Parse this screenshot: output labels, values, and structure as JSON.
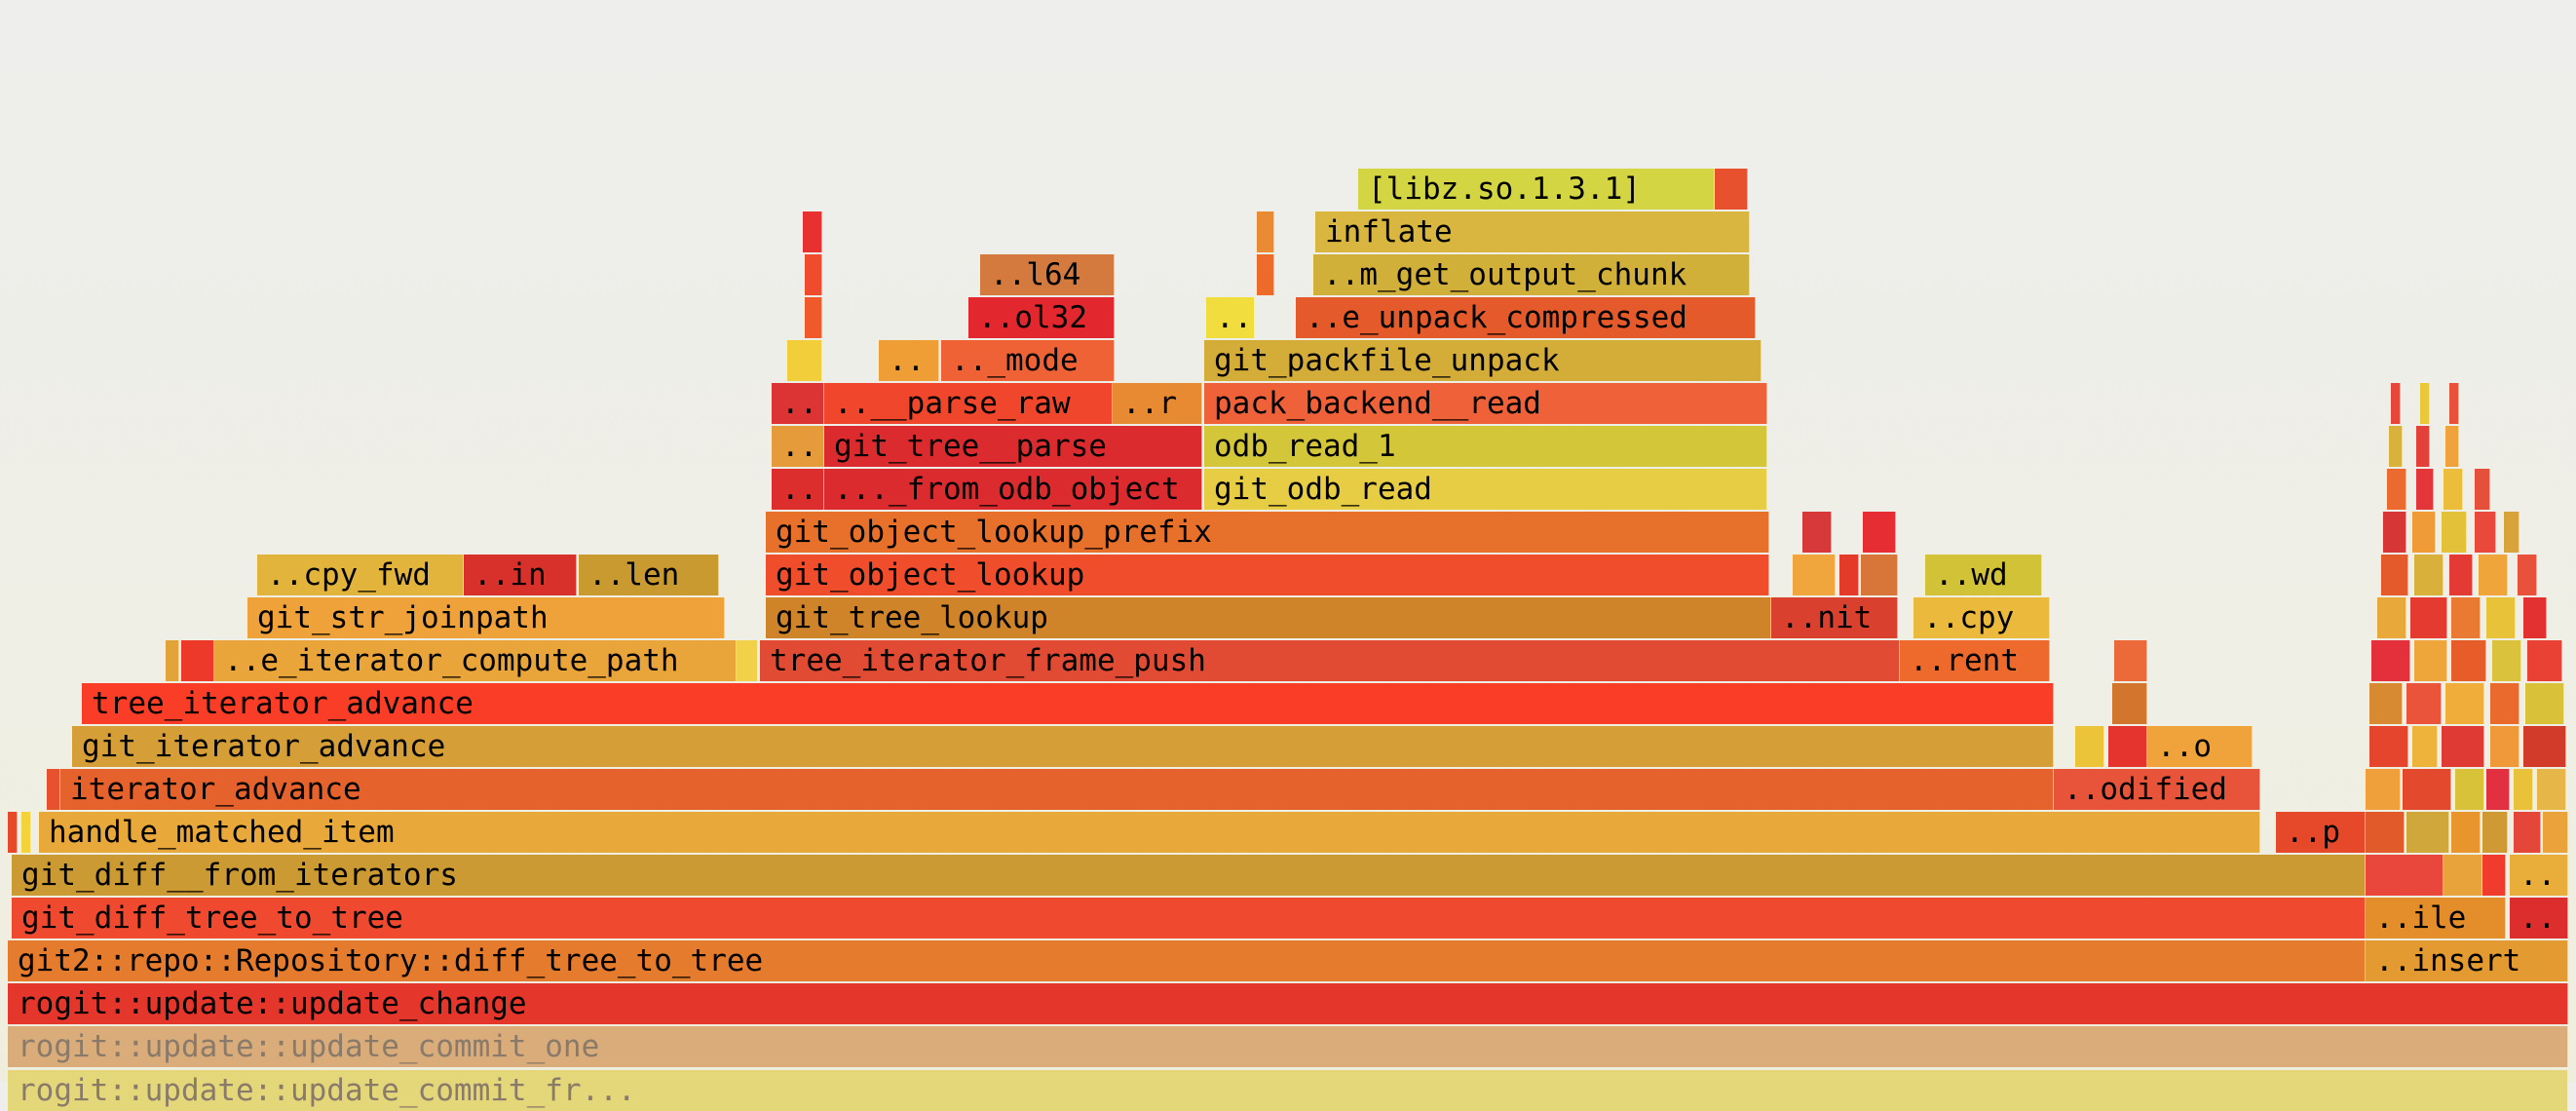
{
  "view": "flame-graph",
  "frames": [
    {
      "label": "rogit::update::update_commit_fr...",
      "color": "#e3d77a",
      "dimmed": true
    },
    {
      "label": "rogit::update::update_commit_one",
      "color": "#d9ac7a",
      "dimmed": true
    },
    {
      "label": "rogit::update::update_change",
      "color": "#e5362b"
    },
    {
      "label": "git2::repo::Repository::diff_tree_to_tree",
      "color": "#e57b2d"
    },
    {
      "label": "..insert",
      "color": "#e39a30"
    },
    {
      "label": "git_diff_tree_to_tree",
      "color": "#ef4a2f"
    },
    {
      "label": "..ile",
      "color": "#e38e2a"
    },
    {
      "label": "..",
      "color": "#dd2e2e"
    },
    {
      "label": "git_diff__from_iterators",
      "color": "#cc9a33"
    },
    {
      "label": "..",
      "color": "#e9ad3a"
    },
    {
      "label": "handle_matched_item",
      "color": "#e9a93a"
    },
    {
      "label": "..p",
      "color": "#e5492a"
    },
    {
      "label": "iterator_advance",
      "color": "#e5622c"
    },
    {
      "label": "..odified",
      "color": "#e7543a"
    },
    {
      "label": "git_iterator_advance",
      "color": "#d69e36"
    },
    {
      "label": "..o",
      "color": "#f0a33a"
    },
    {
      "label": "tree_iterator_advance",
      "color": "#f93d27"
    },
    {
      "label": "..e_iterator_compute_path",
      "color": "#eaa53a"
    },
    {
      "label": "tree_iterator_frame_push",
      "color": "#e24b33"
    },
    {
      "label": "..rent",
      "color": "#ee6a2c"
    },
    {
      "label": "git_str_joinpath",
      "color": "#f0a23a"
    },
    {
      "label": "git_tree_lookup",
      "color": "#cf8429"
    },
    {
      "label": "..nit",
      "color": "#d9412e"
    },
    {
      "label": "..cpy",
      "color": "#ebb93c"
    },
    {
      "label": "..cpy_fwd",
      "color": "#e3b43c"
    },
    {
      "label": "..in",
      "color": "#d8312c"
    },
    {
      "label": "..len",
      "color": "#c99a2f"
    },
    {
      "label": "git_object_lookup",
      "color": "#ef4d2b"
    },
    {
      "label": "..wd",
      "color": "#d2c237"
    },
    {
      "label": "git_object_lookup_prefix",
      "color": "#e7712a"
    },
    {
      "label": "..",
      "color": "#dd2e2e"
    },
    {
      "label": "..._from_odb_object",
      "color": "#dc2b2e"
    },
    {
      "label": "git_odb_read",
      "color": "#e7cd44"
    },
    {
      "label": "..",
      "color": "#e69b3a"
    },
    {
      "label": "git_tree__parse",
      "color": "#db2b2f"
    },
    {
      "label": "odb_read_1",
      "color": "#d3c638"
    },
    {
      "label": "..",
      "color": "#dc3434"
    },
    {
      "label": "..__parse_raw",
      "color": "#f0462c"
    },
    {
      "label": "..r",
      "color": "#e88a32"
    },
    {
      "label": "pack_backend__read",
      "color": "#ef6239"
    },
    {
      "label": "..",
      "color": "#ee9e34"
    },
    {
      "label": ".._mode",
      "color": "#ee6236"
    },
    {
      "label": "git_packfile_unpack",
      "color": "#d4ac38"
    },
    {
      "label": "..ol32",
      "color": "#e3272e"
    },
    {
      "label": "..",
      "color": "#f2dd3e"
    },
    {
      "label": "..e_unpack_compressed",
      "color": "#e45a2b"
    },
    {
      "label": "..l64",
      "color": "#d47a3e"
    },
    {
      "label": "..m_get_output_chunk",
      "color": "#d1b03a"
    },
    {
      "label": "inflate",
      "color": "#d8b63f"
    },
    {
      "label": "[libz.so.1.3.1]",
      "color": "#d3d543"
    }
  ]
}
